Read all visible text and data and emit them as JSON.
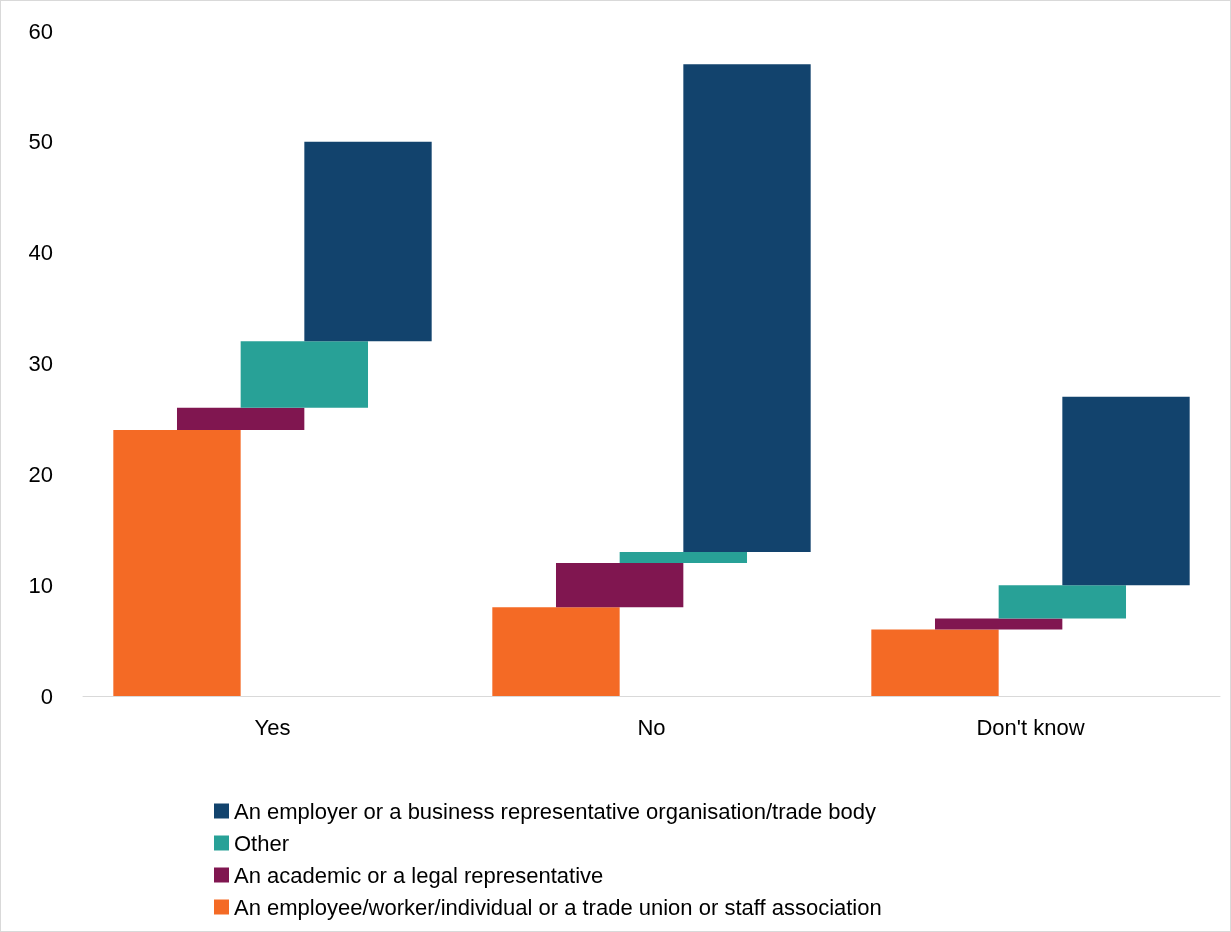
{
  "chart_data": {
    "type": "bar",
    "categories": [
      "Yes",
      "No",
      "Don't know"
    ],
    "series": [
      {
        "name": "An employee/worker/individual or a trade union or staff association",
        "color": "#f46a25",
        "values": [
          24,
          8,
          6
        ],
        "base": [
          0,
          0,
          0
        ]
      },
      {
        "name": "An academic or a legal representative",
        "color": "#801650",
        "values": [
          2,
          4,
          1
        ],
        "base": [
          24,
          8,
          6
        ]
      },
      {
        "name": "Other",
        "color": "#28a197",
        "values": [
          6,
          1,
          3
        ],
        "base": [
          26,
          12,
          7
        ]
      },
      {
        "name": "An employer or a business representative organisation/trade body",
        "color": "#12436d",
        "values": [
          18,
          44,
          17
        ],
        "base": [
          32,
          13,
          10
        ]
      }
    ],
    "ylim": [
      0,
      60
    ],
    "yticks": [
      0,
      10,
      20,
      30,
      40,
      50,
      60
    ],
    "grid": false,
    "legend": "bottom"
  }
}
